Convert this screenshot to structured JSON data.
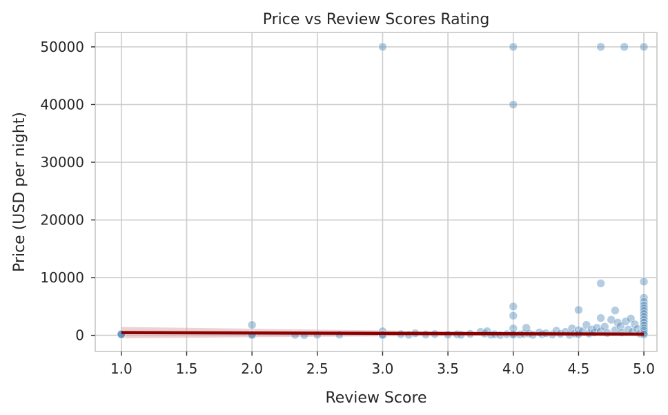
{
  "chart_data": {
    "type": "scatter",
    "title": "Price vs Review Scores Rating",
    "xlabel": "Review Score",
    "ylabel": "Price (USD per night)",
    "xlim": [
      0.8,
      5.1
    ],
    "ylim": [
      -2800,
      52500
    ],
    "xticks": [
      1.0,
      1.5,
      2.0,
      2.5,
      3.0,
      3.5,
      4.0,
      4.5,
      5.0
    ],
    "xtick_labels": [
      "1.0",
      "1.5",
      "2.0",
      "2.5",
      "3.0",
      "3.5",
      "4.0",
      "4.5",
      "5.0"
    ],
    "yticks": [
      0,
      10000,
      20000,
      30000,
      40000,
      50000
    ],
    "ytick_labels": [
      "0",
      "10000",
      "20000",
      "30000",
      "40000",
      "50000"
    ],
    "grid": true,
    "point_color": "#4682b4",
    "regression_color": "#8b0000",
    "ci_color": "#d9a8a8",
    "series": [
      {
        "points": [
          [
            1.0,
            90
          ],
          [
            1.0,
            150
          ],
          [
            1.0,
            210
          ],
          [
            2.0,
            1800
          ],
          [
            2.0,
            150
          ],
          [
            2.0,
            60
          ],
          [
            2.33,
            80
          ],
          [
            2.4,
            40
          ],
          [
            2.5,
            100
          ],
          [
            2.67,
            120
          ],
          [
            3.0,
            50000
          ],
          [
            3.0,
            700
          ],
          [
            3.0,
            150
          ],
          [
            3.0,
            60
          ],
          [
            3.14,
            200
          ],
          [
            3.2,
            80
          ],
          [
            3.25,
            350
          ],
          [
            3.33,
            150
          ],
          [
            3.4,
            220
          ],
          [
            3.5,
            120
          ],
          [
            3.57,
            180
          ],
          [
            3.6,
            90
          ],
          [
            3.67,
            250
          ],
          [
            3.75,
            600
          ],
          [
            3.78,
            300
          ],
          [
            3.8,
            700
          ],
          [
            3.83,
            100
          ],
          [
            3.86,
            180
          ],
          [
            3.9,
            50
          ],
          [
            3.95,
            200
          ],
          [
            4.0,
            50000
          ],
          [
            4.0,
            40000
          ],
          [
            4.0,
            5000
          ],
          [
            4.0,
            3400
          ],
          [
            4.0,
            1200
          ],
          [
            4.0,
            300
          ],
          [
            4.0,
            100
          ],
          [
            4.05,
            150
          ],
          [
            4.08,
            250
          ],
          [
            4.1,
            1300
          ],
          [
            4.12,
            300
          ],
          [
            4.15,
            80
          ],
          [
            4.2,
            500
          ],
          [
            4.22,
            200
          ],
          [
            4.25,
            350
          ],
          [
            4.3,
            150
          ],
          [
            4.33,
            800
          ],
          [
            4.36,
            250
          ],
          [
            4.4,
            600
          ],
          [
            4.43,
            100
          ],
          [
            4.45,
            1200
          ],
          [
            4.47,
            300
          ],
          [
            4.5,
            4400
          ],
          [
            4.5,
            900
          ],
          [
            4.5,
            200
          ],
          [
            4.53,
            700
          ],
          [
            4.56,
            1800
          ],
          [
            4.58,
            300
          ],
          [
            4.6,
            1000
          ],
          [
            4.62,
            500
          ],
          [
            4.64,
            1300
          ],
          [
            4.67,
            50000
          ],
          [
            4.67,
            9000
          ],
          [
            4.67,
            3000
          ],
          [
            4.67,
            700
          ],
          [
            4.7,
            1500
          ],
          [
            4.72,
            400
          ],
          [
            4.75,
            2700
          ],
          [
            4.78,
            4300
          ],
          [
            4.78,
            900
          ],
          [
            4.8,
            2200
          ],
          [
            4.82,
            1600
          ],
          [
            4.83,
            500
          ],
          [
            4.85,
            50000
          ],
          [
            4.86,
            2400
          ],
          [
            4.88,
            1000
          ],
          [
            4.9,
            2900
          ],
          [
            4.91,
            600
          ],
          [
            4.93,
            1900
          ],
          [
            4.95,
            1100
          ],
          [
            4.97,
            300
          ],
          [
            5.0,
            50000
          ],
          [
            5.0,
            9300
          ],
          [
            5.0,
            6500
          ],
          [
            5.0,
            5800
          ],
          [
            5.0,
            5200
          ],
          [
            5.0,
            4700
          ],
          [
            5.0,
            4200
          ],
          [
            5.0,
            3700
          ],
          [
            5.0,
            3200
          ],
          [
            5.0,
            2700
          ],
          [
            5.0,
            2200
          ],
          [
            5.0,
            1700
          ],
          [
            5.0,
            1200
          ],
          [
            5.0,
            800
          ],
          [
            5.0,
            400
          ],
          [
            5.0,
            150
          ]
        ]
      }
    ],
    "regression": {
      "x": [
        1.0,
        5.0
      ],
      "y": [
        480,
        200
      ],
      "ci_lower": [
        -500,
        150
      ],
      "ci_upper": [
        1450,
        250
      ]
    }
  }
}
